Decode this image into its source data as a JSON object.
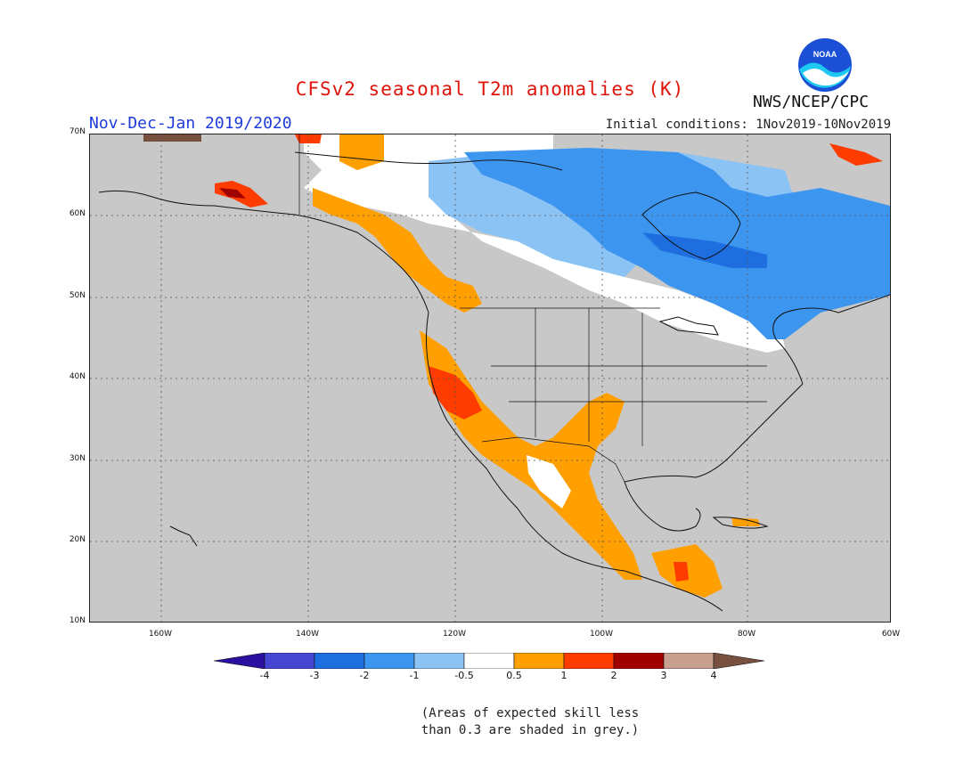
{
  "header": {
    "title": "CFSv2 seasonal T2m anomalies (K)",
    "period": "Nov-Dec-Jan 2019/2020",
    "initial_conditions": "Initial conditions: 1Nov2019-10Nov2019",
    "agency": "NWS/NCEP/CPC",
    "logo_text": "NOAA"
  },
  "map": {
    "lat_labels": [
      "70N",
      "60N",
      "50N",
      "40N",
      "30N",
      "20N",
      "10N"
    ],
    "lon_labels": [
      "160W",
      "140W",
      "120W",
      "100W",
      "80W",
      "60W"
    ],
    "background_color": "#c8c8c8",
    "regions": [
      {
        "name": "Canada north (white)",
        "anomaly": "-0.5 to 0.5"
      },
      {
        "name": "Northern Canada (light blue)",
        "anomaly": "-1 to -0.5"
      },
      {
        "name": "Hudson Bay / Quebec (blue)",
        "anomaly": "-2 to -1"
      },
      {
        "name": "Alaska coast / BC coast (orange)",
        "anomaly": "0.5 to 1"
      },
      {
        "name": "California / Southwest (orange/red)",
        "anomaly": "0.5 to 2"
      },
      {
        "name": "Mexico (orange)",
        "anomaly": "0.5 to 1"
      },
      {
        "name": "Central America (orange)",
        "anomaly": "0.5 to 2"
      }
    ]
  },
  "colorbar": {
    "labels": [
      "-4",
      "-3",
      "-2",
      "-1",
      "-0.5",
      "0.5",
      "1",
      "2",
      "3",
      "4"
    ],
    "colors": [
      "#2a0fa0",
      "#4646d2",
      "#1e6ee0",
      "#3c96f0",
      "#8cc3f5",
      "#ffffff",
      "#ffa000",
      "#ff3c00",
      "#a00000",
      "#c8a090",
      "#785040"
    ]
  },
  "note": {
    "line1": "(Areas of expected skill less",
    "line2": "than 0.3 are shaded in grey.)"
  }
}
